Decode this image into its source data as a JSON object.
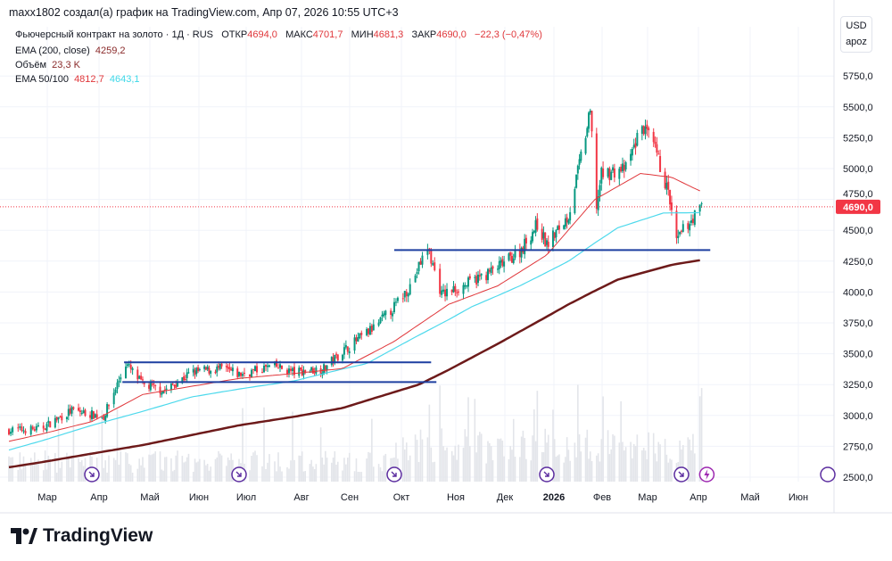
{
  "header": {
    "attribution": "maxx1802 создал(а) график на TradingView.com, Апр 07, 2026 10:55 UTC+3"
  },
  "legend": {
    "symbol": "Фьючерсный контракт на золото · 1Д · RUS",
    "open_label": "ОТКР",
    "open": "4694,0",
    "high_label": "МАКС",
    "high": "4701,7",
    "low_label": "МИН",
    "low": "4681,3",
    "close_label": "ЗАКР",
    "close": "4690,0",
    "change": "−22,3 (−0,47%)",
    "ema200_label": "EMA (200, close)",
    "ema200": "4259,2",
    "volume_label": "Объём",
    "volume": "23,3 K",
    "ema50_100_label": "EMA 50/100",
    "ema50": "4812,7",
    "ema100": "4643,1"
  },
  "currency": {
    "code": "USD",
    "unit": "apoz"
  },
  "last_price_tag": "4690,0",
  "brand": "TradingView",
  "colors": {
    "up": "#089981",
    "down": "#f23645",
    "ema50": "#e0373b",
    "ema100": "#4dd9ec",
    "ema200": "#6d1a1a",
    "lines": "#1d3fa0",
    "tag": "#f23645"
  },
  "chart_data": {
    "type": "candlestick",
    "y_ticks": [
      "2500,0",
      "2750,0",
      "3000,0",
      "3250,0",
      "3500,0",
      "3750,0",
      "4000,0",
      "4250,0",
      "4500,0",
      "4750,0",
      "5000,0",
      "5250,0",
      "5500,0",
      "5750,0"
    ],
    "ylim": [
      2500,
      5750
    ],
    "x_ticks": [
      "Мар",
      "Апр",
      "Май",
      "Июн",
      "Июл",
      "Авг",
      "Сен",
      "Окт",
      "Ноя",
      "Дек",
      "2026",
      "Фев",
      "Мар",
      "Апр",
      "Май",
      "Июн"
    ],
    "price_path": [
      [
        "2025-02-12",
        2880
      ],
      [
        "2025-03-01",
        2890
      ],
      [
        "2025-03-20",
        3040
      ],
      [
        "2025-04-08",
        2990
      ],
      [
        "2025-04-21",
        3420
      ],
      [
        "2025-05-01",
        3250
      ],
      [
        "2025-05-15",
        3200
      ],
      [
        "2025-06-01",
        3350
      ],
      [
        "2025-06-20",
        3380
      ],
      [
        "2025-07-01",
        3330
      ],
      [
        "2025-07-20",
        3400
      ],
      [
        "2025-08-01",
        3350
      ],
      [
        "2025-08-20",
        3380
      ],
      [
        "2025-09-01",
        3520
      ],
      [
        "2025-09-20",
        3720
      ],
      [
        "2025-10-01",
        3880
      ],
      [
        "2025-10-10",
        4050
      ],
      [
        "2025-10-20",
        4360
      ],
      [
        "2025-10-28",
        3980
      ],
      [
        "2025-11-10",
        4050
      ],
      [
        "2025-11-25",
        4150
      ],
      [
        "2025-12-01",
        4200
      ],
      [
        "2025-12-15",
        4330
      ],
      [
        "2025-12-26",
        4550
      ],
      [
        "2026-01-01",
        4380
      ],
      [
        "2026-01-15",
        4620
      ],
      [
        "2026-01-29",
        5450
      ],
      [
        "2026-02-02",
        4700
      ],
      [
        "2026-02-05",
        4950
      ],
      [
        "2026-02-20",
        5000
      ],
      [
        "2026-03-02",
        5350
      ],
      [
        "2026-03-10",
        5150
      ],
      [
        "2026-03-18",
        4800
      ],
      [
        "2026-03-23",
        4400
      ],
      [
        "2026-03-27",
        4500
      ],
      [
        "2026-04-07",
        4690
      ]
    ],
    "ema50": [
      [
        "2025-02-12",
        2790
      ],
      [
        "2025-04-01",
        2950
      ],
      [
        "2025-05-01",
        3170
      ],
      [
        "2025-07-01",
        3300
      ],
      [
        "2025-09-01",
        3380
      ],
      [
        "2025-10-01",
        3600
      ],
      [
        "2025-11-01",
        3900
      ],
      [
        "2025-12-01",
        4050
      ],
      [
        "2026-01-01",
        4300
      ],
      [
        "2026-02-01",
        4750
      ],
      [
        "2026-03-01",
        4960
      ],
      [
        "2026-03-20",
        4930
      ],
      [
        "2026-04-07",
        4812.7
      ]
    ],
    "ema100": [
      [
        "2025-02-12",
        2720
      ],
      [
        "2025-04-01",
        2920
      ],
      [
        "2025-06-01",
        3150
      ],
      [
        "2025-08-01",
        3280
      ],
      [
        "2025-09-15",
        3420
      ],
      [
        "2025-10-15",
        3650
      ],
      [
        "2025-11-15",
        3880
      ],
      [
        "2025-12-15",
        4050
      ],
      [
        "2026-01-15",
        4250
      ],
      [
        "2026-02-15",
        4520
      ],
      [
        "2026-03-15",
        4640
      ],
      [
        "2026-04-07",
        4643.1
      ]
    ],
    "ema200": [
      [
        "2025-02-12",
        2580
      ],
      [
        "2025-05-01",
        2760
      ],
      [
        "2025-07-01",
        2920
      ],
      [
        "2025-09-01",
        3060
      ],
      [
        "2025-10-15",
        3250
      ],
      [
        "2025-12-01",
        3580
      ],
      [
        "2026-01-15",
        3900
      ],
      [
        "2026-02-15",
        4100
      ],
      [
        "2026-03-20",
        4220
      ],
      [
        "2026-04-07",
        4259.2
      ]
    ],
    "horizontal_lines": [
      {
        "price": 3430,
        "from": "2025-04-20",
        "to": "2025-10-22"
      },
      {
        "price": 3270,
        "from": "2025-04-19",
        "to": "2025-10-25"
      },
      {
        "price": 4340,
        "from": "2025-10-01",
        "to": "2026-04-12"
      }
    ],
    "last_price": 4690,
    "event_markers": [
      {
        "date": "2025-04-01",
        "icon": "arrow-circle"
      },
      {
        "date": "2025-07-01",
        "icon": "arrow-circle"
      },
      {
        "date": "2025-10-01",
        "icon": "arrow-circle"
      },
      {
        "date": "2026-01-01",
        "icon": "arrow-circle"
      },
      {
        "date": "2026-03-26",
        "icon": "arrow-circle"
      },
      {
        "date": "2026-04-10",
        "icon": "lightning-circle"
      }
    ]
  }
}
